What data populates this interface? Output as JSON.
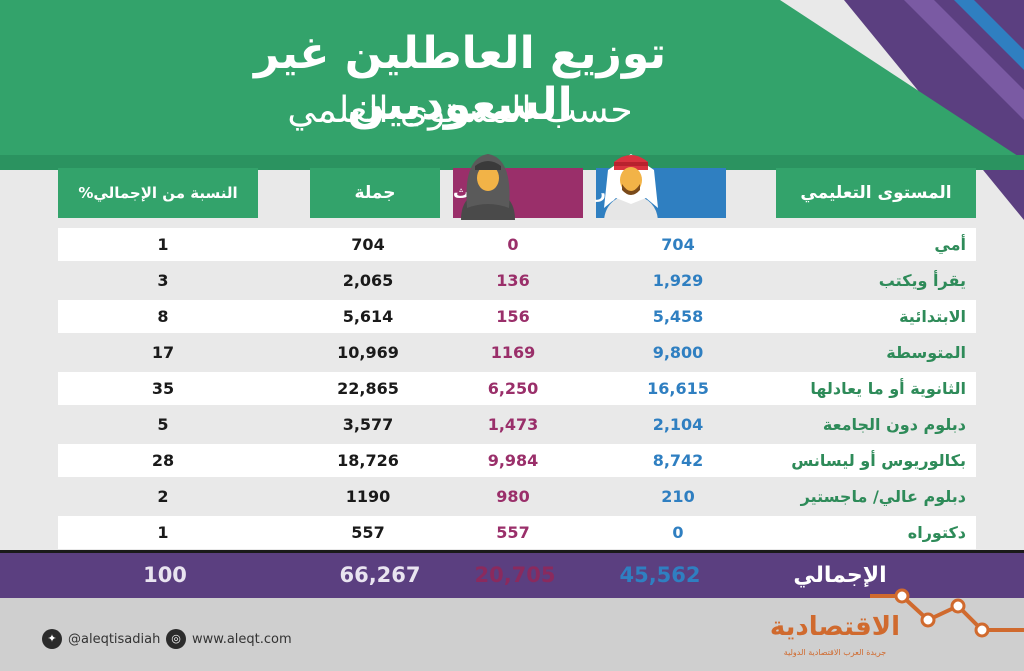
{
  "title": {
    "line1": "توزيع العاطلين غير السعوديين",
    "line2": "حسب المستوى العلمي"
  },
  "columns": {
    "level": "المستوى التعليمي",
    "male": "ذكور",
    "female": "إناث",
    "total": "جملة",
    "percent": "النسبة من الإجمالي%"
  },
  "rows": [
    {
      "level": "أمي",
      "male": "704",
      "female": "0",
      "total": "704",
      "percent": "1"
    },
    {
      "level": "يقرأ ويكتب",
      "male": "1,929",
      "female": "136",
      "total": "2,065",
      "percent": "3"
    },
    {
      "level": "الابتدائية",
      "male": "5,458",
      "female": "156",
      "total": "5,614",
      "percent": "8"
    },
    {
      "level": "المتوسطة",
      "male": "9,800",
      "female": "1169",
      "total": "10,969",
      "percent": "17"
    },
    {
      "level": "الثانوية أو ما يعادلها",
      "male": "16,615",
      "female": "6,250",
      "total": "22,865",
      "percent": "35"
    },
    {
      "level": "دبلوم دون الجامعة",
      "male": "2,104",
      "female": "1,473",
      "total": "3,577",
      "percent": "5"
    },
    {
      "level": "بكالوريوس أو ليسانس",
      "male": "8,742",
      "female": "9,984",
      "total": "18,726",
      "percent": "28"
    },
    {
      "level": "دبلوم عالي/ ماجستير",
      "male": "210",
      "female": "980",
      "total": "1190",
      "percent": "2"
    },
    {
      "level": "دكتوراه",
      "male": "0",
      "female": "557",
      "total": "557",
      "percent": "1"
    }
  ],
  "totals": {
    "label": "الإجمالي",
    "male": "45,562",
    "female": "20,705",
    "total": "66,267",
    "percent": "100"
  },
  "footer": {
    "twitter": "@aleqtisadiah",
    "website": "www.aleqt.com",
    "logo": "الاقتصادية",
    "logo_sub": "جريدة العرب الاقتصادية الدولية"
  },
  "colors": {
    "green": "#33a36b",
    "blue": "#2f7fc1",
    "purple": "#5b3f80",
    "maroon": "#9a2f6a",
    "orange": "#d06a2e"
  },
  "icons": [
    "male-avatar-icon",
    "female-avatar-icon",
    "twitter-icon",
    "web-icon",
    "trend-line-icon"
  ]
}
